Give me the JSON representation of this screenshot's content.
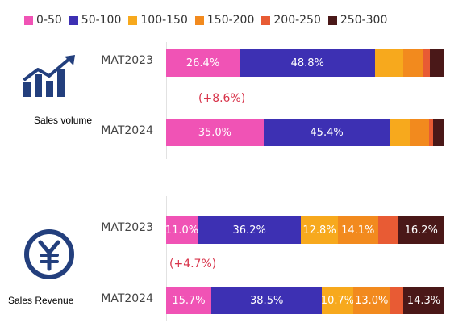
{
  "legend": [
    {
      "label": "0-50",
      "color": "#f053b5"
    },
    {
      "label": "50-100",
      "color": "#3d30b3"
    },
    {
      "label": "100-150",
      "color": "#f7a91d"
    },
    {
      "label": "150-200",
      "color": "#f28a1e"
    },
    {
      "label": "200-250",
      "color": "#e85b34"
    },
    {
      "label": "250-300",
      "color": "#4a1818"
    }
  ],
  "chart_data": [
    {
      "type": "bar",
      "orientation": "horizontal",
      "stacked": true,
      "title": "Sales volume",
      "categories": [
        "MAT2023",
        "MAT2024"
      ],
      "series": [
        {
          "name": "0-50",
          "values": [
            26.4,
            35.0
          ]
        },
        {
          "name": "50-100",
          "values": [
            48.8,
            45.4
          ]
        },
        {
          "name": "100-150",
          "values": [
            10.0,
            7.0
          ]
        },
        {
          "name": "150-200",
          "values": [
            7.0,
            7.0
          ]
        },
        {
          "name": "200-250",
          "values": [
            2.5,
            1.5
          ]
        },
        {
          "name": "250-300",
          "values": [
            5.3,
            4.1
          ]
        }
      ],
      "labels": [
        [
          "26.4%",
          "48.8%",
          "",
          "",
          "",
          ""
        ],
        [
          "35.0%",
          "45.4%",
          "",
          "",
          "",
          ""
        ]
      ],
      "annotation": "(+8.6%)"
    },
    {
      "type": "bar",
      "orientation": "horizontal",
      "stacked": true,
      "title": "Sales Revenue",
      "categories": [
        "MAT2023",
        "MAT2024"
      ],
      "series": [
        {
          "name": "0-50",
          "values": [
            11.0,
            15.7
          ]
        },
        {
          "name": "50-100",
          "values": [
            36.2,
            38.5
          ]
        },
        {
          "name": "100-150",
          "values": [
            12.8,
            10.7
          ]
        },
        {
          "name": "150-200",
          "values": [
            14.1,
            13.0
          ]
        },
        {
          "name": "200-250",
          "values": [
            7.0,
            4.5
          ]
        },
        {
          "name": "250-300",
          "values": [
            16.2,
            14.3
          ]
        }
      ],
      "labels": [
        [
          "11.0%",
          "36.2%",
          "12.8%",
          "14.1%",
          "",
          "16.2%"
        ],
        [
          "15.7%",
          "38.5%",
          "10.7%",
          "13.0%",
          "",
          "14.3%"
        ]
      ],
      "annotation": "(+4.7%)"
    }
  ]
}
